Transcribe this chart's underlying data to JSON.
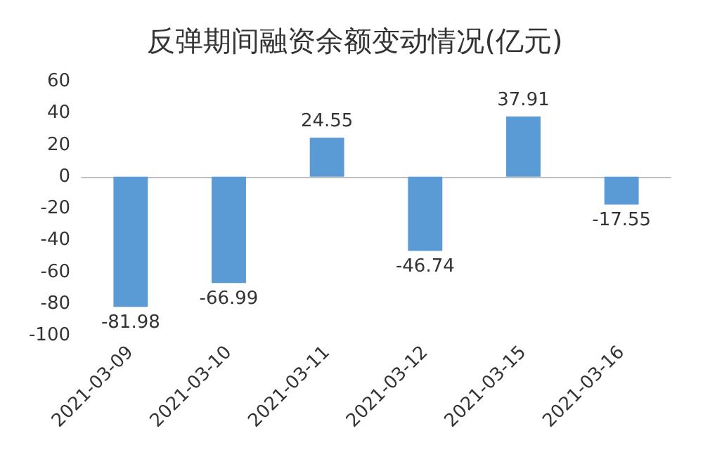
{
  "chart_data": {
    "type": "bar",
    "title": "反弹期间融资余额变动情况(亿元)",
    "categories": [
      "2021-03-09",
      "2021-03-10",
      "2021-03-11",
      "2021-03-12",
      "2021-03-15",
      "2021-03-16"
    ],
    "values": [
      -81.98,
      -66.99,
      24.55,
      -46.74,
      37.91,
      -17.55
    ],
    "color": "#5b9bd5",
    "ylim": [
      -100,
      60
    ],
    "yticks": [
      -100,
      -80,
      -60,
      -40,
      -20,
      0,
      20,
      40,
      60
    ],
    "data_labels": true
  }
}
